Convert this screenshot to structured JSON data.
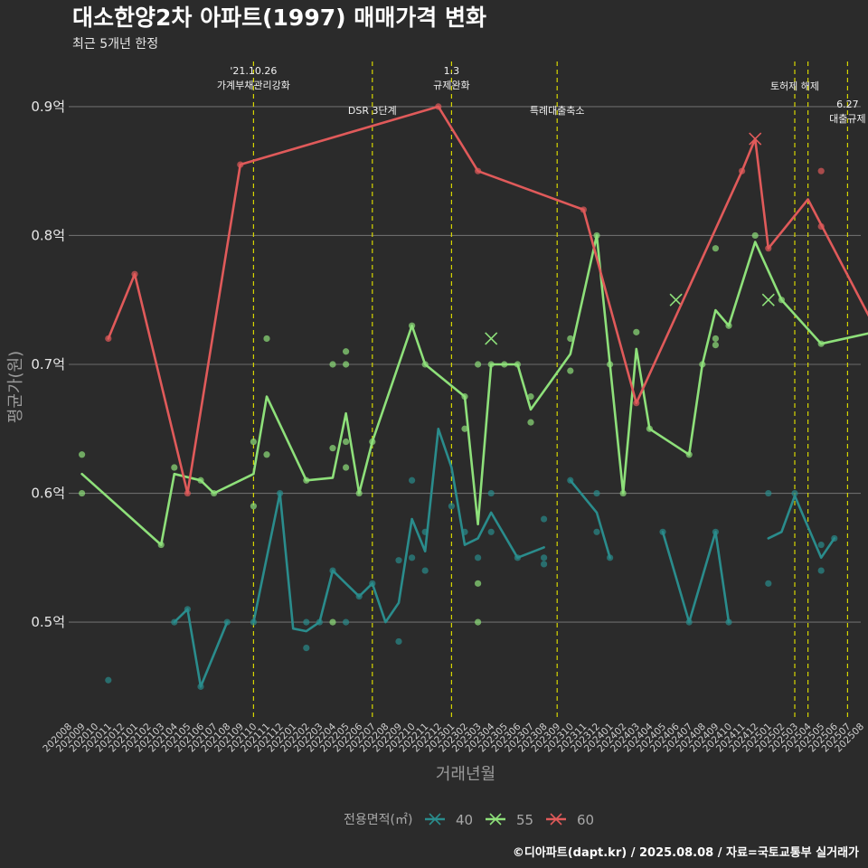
{
  "chart_data": {
    "type": "line",
    "title": "대소한양2차 아파트(1997) 매매가격 변화",
    "subtitle": "최근 5개년 한정",
    "xlabel": "거래년월",
    "ylabel": "평균가(원)",
    "caption": "©디아파트(dapt.kr) / 2025.08.08 / 자료=국토교통부 실거래가",
    "grid": true,
    "legend_position": "bottom",
    "legend_title": "전용면적(㎡)",
    "x_categories": [
      "202008",
      "202009",
      "202010",
      "202011",
      "202012",
      "202101",
      "202102",
      "202103",
      "202104",
      "202105",
      "202106",
      "202107",
      "202108",
      "202109",
      "202110",
      "202111",
      "202112",
      "202201",
      "202202",
      "202203",
      "202204",
      "202205",
      "202206",
      "202207",
      "202208",
      "202209",
      "202210",
      "202211",
      "202212",
      "202301",
      "202302",
      "202303",
      "202304",
      "202305",
      "202306",
      "202307",
      "202308",
      "202309",
      "202310",
      "202311",
      "202312",
      "202401",
      "202402",
      "202403",
      "202404",
      "202405",
      "202406",
      "202407",
      "202408",
      "202409",
      "202410",
      "202411",
      "202412",
      "202501",
      "202502",
      "202503",
      "202504",
      "202505",
      "202506",
      "202507",
      "202508"
    ],
    "ylim": [
      0.425,
      0.935
    ],
    "yticks": [
      0.5,
      0.6,
      0.7,
      0.8,
      0.9
    ],
    "ytick_labels": [
      "0.5억",
      "0.6억",
      "0.7억",
      "0.8억",
      "0.9억"
    ],
    "series": [
      {
        "name": "40",
        "color": "#2a8c8c",
        "segments": [
          [
            [
              3,
              0.5
            ]
          ],
          [
            [
              8,
              0.5
            ],
            [
              9,
              0.51
            ],
            [
              10,
              0.45
            ],
            [
              12,
              0.5
            ]
          ],
          [
            [
              14,
              0.5
            ],
            [
              16,
              0.6
            ],
            [
              17,
              0.495
            ],
            [
              18,
              0.493
            ],
            [
              19,
              0.5
            ],
            [
              20,
              0.54
            ],
            [
              22,
              0.52
            ],
            [
              23,
              0.53
            ],
            [
              24,
              0.5
            ],
            [
              25,
              0.515
            ],
            [
              26,
              0.58
            ],
            [
              27,
              0.555
            ],
            [
              28,
              0.65
            ],
            [
              29,
              0.62
            ],
            [
              30,
              0.56
            ],
            [
              31,
              0.565
            ],
            [
              32,
              0.585
            ],
            [
              34,
              0.55
            ],
            [
              36,
              0.558
            ]
          ],
          [
            [
              38,
              0.61
            ],
            [
              40,
              0.585
            ],
            [
              41,
              0.55
            ]
          ],
          [
            [
              45,
              0.57
            ],
            [
              47,
              0.5
            ],
            [
              49,
              0.57
            ],
            [
              50,
              0.5
            ]
          ],
          [
            [
              53,
              0.565
            ],
            [
              54,
              0.57
            ],
            [
              55,
              0.598
            ],
            [
              57,
              0.55
            ],
            [
              58,
              0.565
            ]
          ]
        ],
        "points": [
          [
            3,
            0.455
          ],
          [
            8,
            0.5
          ],
          [
            9,
            0.51
          ],
          [
            10,
            0.45
          ],
          [
            12,
            0.5
          ],
          [
            14,
            0.5
          ],
          [
            16,
            0.6
          ],
          [
            18,
            0.48
          ],
          [
            18,
            0.5
          ],
          [
            19,
            0.5
          ],
          [
            20,
            0.54
          ],
          [
            21,
            0.5
          ],
          [
            22,
            0.52
          ],
          [
            23,
            0.53
          ],
          [
            25,
            0.548
          ],
          [
            25,
            0.485
          ],
          [
            26,
            0.61
          ],
          [
            26,
            0.55
          ],
          [
            27,
            0.54
          ],
          [
            27,
            0.57
          ],
          [
            29,
            0.59
          ],
          [
            30,
            0.57
          ],
          [
            31,
            0.55
          ],
          [
            32,
            0.6
          ],
          [
            32,
            0.57
          ],
          [
            34,
            0.55
          ],
          [
            36,
            0.545
          ],
          [
            36,
            0.55
          ],
          [
            36,
            0.58
          ],
          [
            38,
            0.61
          ],
          [
            40,
            0.6
          ],
          [
            40,
            0.57
          ],
          [
            41,
            0.55
          ],
          [
            45,
            0.57
          ],
          [
            47,
            0.5
          ],
          [
            49,
            0.57
          ],
          [
            50,
            0.5
          ],
          [
            53,
            0.6
          ],
          [
            53,
            0.53
          ],
          [
            55,
            0.6
          ],
          [
            57,
            0.56
          ],
          [
            57,
            0.54
          ],
          [
            58,
            0.565
          ]
        ],
        "crosses": []
      },
      {
        "name": "55",
        "color": "#8ee07a",
        "segments": [
          [
            [
              1,
              0.615
            ],
            [
              7,
              0.56
            ],
            [
              8,
              0.615
            ],
            [
              10,
              0.61
            ],
            [
              11,
              0.6
            ],
            [
              14,
              0.615
            ],
            [
              15,
              0.675
            ],
            [
              18,
              0.61
            ],
            [
              20,
              0.612
            ],
            [
              21,
              0.662
            ],
            [
              22,
              0.6
            ],
            [
              23,
              0.64
            ],
            [
              26,
              0.73
            ],
            [
              27,
              0.7
            ],
            [
              30,
              0.675
            ],
            [
              31,
              0.576
            ],
            [
              32,
              0.7
            ],
            [
              33,
              0.7
            ],
            [
              34,
              0.7
            ],
            [
              35,
              0.665
            ],
            [
              38,
              0.708
            ],
            [
              40,
              0.8
            ],
            [
              41,
              0.7
            ],
            [
              42,
              0.6
            ],
            [
              43,
              0.712
            ],
            [
              44,
              0.65
            ],
            [
              47,
              0.63
            ],
            [
              48,
              0.7
            ],
            [
              49,
              0.742
            ],
            [
              50,
              0.73
            ],
            [
              52,
              0.795
            ],
            [
              54,
              0.75
            ],
            [
              57,
              0.716
            ],
            [
              61,
              0.725
            ]
          ]
        ],
        "points": [
          [
            1,
            0.63
          ],
          [
            1,
            0.6
          ],
          [
            7,
            0.56
          ],
          [
            8,
            0.62
          ],
          [
            10,
            0.61
          ],
          [
            11,
            0.6
          ],
          [
            14,
            0.64
          ],
          [
            14,
            0.59
          ],
          [
            15,
            0.72
          ],
          [
            15,
            0.63
          ],
          [
            18,
            0.61
          ],
          [
            20,
            0.7
          ],
          [
            20,
            0.635
          ],
          [
            20,
            0.5
          ],
          [
            21,
            0.71
          ],
          [
            21,
            0.7
          ],
          [
            21,
            0.64
          ],
          [
            21,
            0.62
          ],
          [
            22,
            0.6
          ],
          [
            23,
            0.64
          ],
          [
            26,
            0.73
          ],
          [
            27,
            0.7
          ],
          [
            30,
            0.675
          ],
          [
            30,
            0.65
          ],
          [
            31,
            0.7
          ],
          [
            31,
            0.53
          ],
          [
            31,
            0.5
          ],
          [
            32,
            0.7
          ],
          [
            33,
            0.7
          ],
          [
            34,
            0.7
          ],
          [
            35,
            0.675
          ],
          [
            35,
            0.655
          ],
          [
            38,
            0.72
          ],
          [
            38,
            0.695
          ],
          [
            40,
            0.8
          ],
          [
            41,
            0.7
          ],
          [
            42,
            0.6
          ],
          [
            43,
            0.725
          ],
          [
            44,
            0.65
          ],
          [
            47,
            0.63
          ],
          [
            48,
            0.7
          ],
          [
            49,
            0.79
          ],
          [
            49,
            0.72
          ],
          [
            49,
            0.715
          ],
          [
            50,
            0.73
          ],
          [
            52,
            0.8
          ],
          [
            54,
            0.75
          ],
          [
            57,
            0.716
          ],
          [
            61,
            0.725
          ]
        ],
        "crosses": [
          [
            32,
            0.72
          ],
          [
            46,
            0.75
          ],
          [
            53,
            0.75
          ]
        ]
      },
      {
        "name": "60",
        "color": "#e05a5a",
        "segments": [
          [
            [
              3,
              0.72
            ],
            [
              5,
              0.77
            ],
            [
              9,
              0.6
            ],
            [
              13,
              0.855
            ],
            [
              28,
              0.9
            ],
            [
              31,
              0.85
            ],
            [
              39,
              0.82
            ],
            [
              43,
              0.67
            ],
            [
              51,
              0.85
            ],
            [
              52,
              0.875
            ],
            [
              53,
              0.79
            ],
            [
              56,
              0.828
            ],
            [
              61,
              0.73
            ]
          ]
        ],
        "points": [
          [
            3,
            0.72
          ],
          [
            5,
            0.77
          ],
          [
            9,
            0.6
          ],
          [
            13,
            0.855
          ],
          [
            28,
            0.9
          ],
          [
            31,
            0.85
          ],
          [
            39,
            0.82
          ],
          [
            43,
            0.67
          ],
          [
            51,
            0.85
          ],
          [
            53,
            0.79
          ],
          [
            57,
            0.85
          ],
          [
            57,
            0.807
          ],
          [
            61,
            0.73
          ]
        ],
        "crosses": [
          [
            52,
            0.875
          ]
        ]
      }
    ],
    "events": [
      {
        "x": 14,
        "lines": [
          "'21.10.26",
          "가계부채관리강화"
        ],
        "label_y": 0.928
      },
      {
        "x": 23,
        "lines": [
          "DSR 3단계"
        ],
        "label_y": 0.897
      },
      {
        "x": 29,
        "lines": [
          "1.3",
          "규제완화"
        ],
        "label_y": 0.928
      },
      {
        "x": 37,
        "lines": [
          "특례대출축소"
        ],
        "label_y": 0.897
      },
      {
        "x": 55,
        "lines": [
          "토허제 해제"
        ],
        "label_y": 0.916
      },
      {
        "x": 56,
        "lines": [],
        "label_y": 0.9
      },
      {
        "x": 59,
        "lines": [
          "6.27",
          "대출규제"
        ],
        "label_y": 0.902
      }
    ]
  }
}
